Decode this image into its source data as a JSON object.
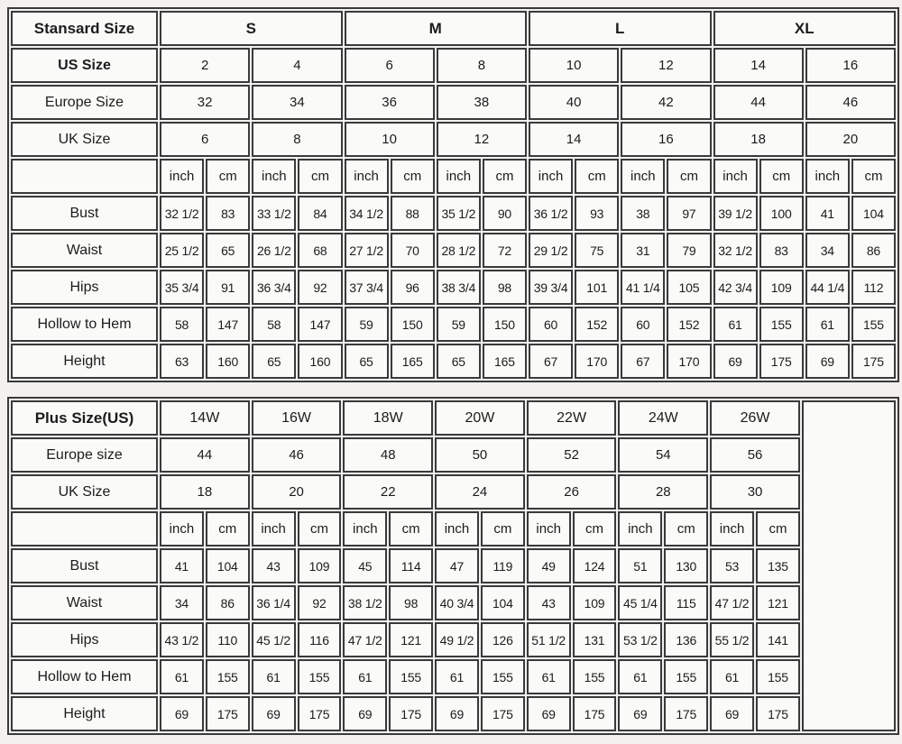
{
  "colors": {
    "page_background": "#f2f1ef",
    "cell_background": "#fafaf8",
    "border": "#3a3a3a",
    "text": "#1c1c1c"
  },
  "standard_table": {
    "corner_label": "Stansard Size",
    "size_groups": [
      "S",
      "M",
      "L",
      "XL"
    ],
    "size_rows": [
      {
        "label": "US Size",
        "bold": true,
        "values": [
          "2",
          "4",
          "6",
          "8",
          "10",
          "12",
          "14",
          "16"
        ]
      },
      {
        "label": "Europe Size",
        "bold": false,
        "values": [
          "32",
          "34",
          "36",
          "38",
          "40",
          "42",
          "44",
          "46"
        ]
      },
      {
        "label": "UK Size",
        "bold": false,
        "values": [
          "6",
          "8",
          "10",
          "12",
          "14",
          "16",
          "18",
          "20"
        ]
      }
    ],
    "unit_labels": [
      "inch",
      "cm"
    ],
    "measure_rows": [
      {
        "label": "Bust",
        "values": [
          "32 1/2",
          "83",
          "33 1/2",
          "84",
          "34 1/2",
          "88",
          "35 1/2",
          "90",
          "36 1/2",
          "93",
          "38",
          "97",
          "39 1/2",
          "100",
          "41",
          "104"
        ]
      },
      {
        "label": "Waist",
        "values": [
          "25 1/2",
          "65",
          "26 1/2",
          "68",
          "27 1/2",
          "70",
          "28 1/2",
          "72",
          "29 1/2",
          "75",
          "31",
          "79",
          "32 1/2",
          "83",
          "34",
          "86"
        ]
      },
      {
        "label": "Hips",
        "values": [
          "35 3/4",
          "91",
          "36 3/4",
          "92",
          "37 3/4",
          "96",
          "38 3/4",
          "98",
          "39 3/4",
          "101",
          "41 1/4",
          "105",
          "42 3/4",
          "109",
          "44 1/4",
          "112"
        ]
      },
      {
        "label": "Hollow to Hem",
        "values": [
          "58",
          "147",
          "58",
          "147",
          "59",
          "150",
          "59",
          "150",
          "60",
          "152",
          "60",
          "152",
          "61",
          "155",
          "61",
          "155"
        ]
      },
      {
        "label": "Height",
        "values": [
          "63",
          "160",
          "65",
          "160",
          "65",
          "165",
          "65",
          "165",
          "67",
          "170",
          "67",
          "170",
          "69",
          "175",
          "69",
          "175"
        ]
      }
    ]
  },
  "plus_table": {
    "corner_label": "Plus Size(US)",
    "size_groups": [
      "14W",
      "16W",
      "18W",
      "20W",
      "22W",
      "24W",
      "26W"
    ],
    "trailing_empty_column": true,
    "size_rows": [
      {
        "label": "Europe size",
        "bold": false,
        "values": [
          "44",
          "46",
          "48",
          "50",
          "52",
          "54",
          "56"
        ]
      },
      {
        "label": "UK Size",
        "bold": false,
        "values": [
          "18",
          "20",
          "22",
          "24",
          "26",
          "28",
          "30"
        ]
      }
    ],
    "unit_labels": [
      "inch",
      "cm"
    ],
    "measure_rows": [
      {
        "label": "Bust",
        "values": [
          "41",
          "104",
          "43",
          "109",
          "45",
          "114",
          "47",
          "119",
          "49",
          "124",
          "51",
          "130",
          "53",
          "135"
        ]
      },
      {
        "label": "Waist",
        "values": [
          "34",
          "86",
          "36 1/4",
          "92",
          "38 1/2",
          "98",
          "40 3/4",
          "104",
          "43",
          "109",
          "45 1/4",
          "115",
          "47 1/2",
          "121"
        ]
      },
      {
        "label": "Hips",
        "values": [
          "43 1/2",
          "110",
          "45 1/2",
          "116",
          "47 1/2",
          "121",
          "49 1/2",
          "126",
          "51 1/2",
          "131",
          "53 1/2",
          "136",
          "55 1/2",
          "141"
        ]
      },
      {
        "label": "Hollow to Hem",
        "values": [
          "61",
          "155",
          "61",
          "155",
          "61",
          "155",
          "61",
          "155",
          "61",
          "155",
          "61",
          "155",
          "61",
          "155"
        ]
      },
      {
        "label": "Height",
        "values": [
          "69",
          "175",
          "69",
          "175",
          "69",
          "175",
          "69",
          "175",
          "69",
          "175",
          "69",
          "175",
          "69",
          "175"
        ]
      }
    ]
  }
}
